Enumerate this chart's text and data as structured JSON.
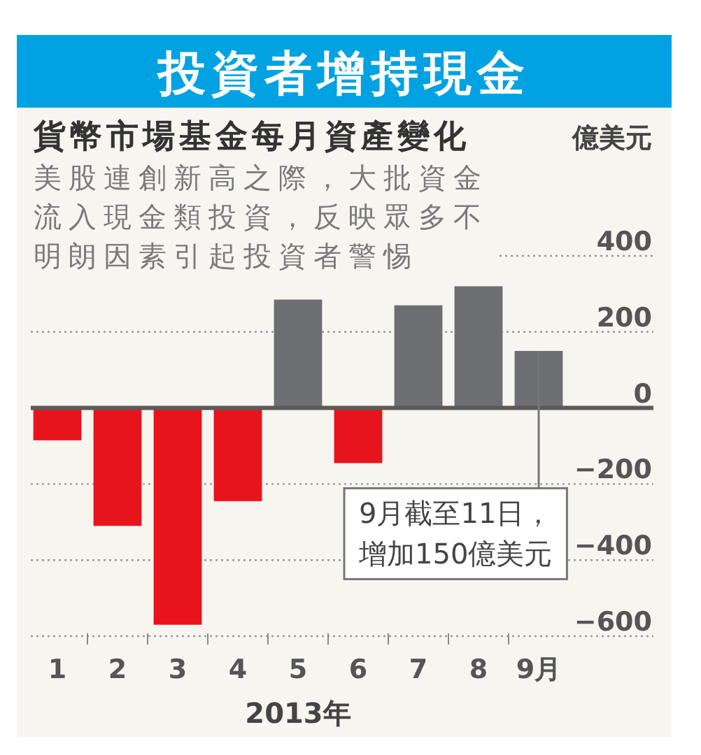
{
  "chart_data": {
    "type": "bar",
    "title": "投資者增持現金",
    "subtitle": "貨幣市場基金每月資產變化",
    "ylabel": "億美元",
    "xlabel": "2013年",
    "categories": [
      "1",
      "2",
      "3",
      "4",
      "5",
      "6",
      "7",
      "8",
      "9月"
    ],
    "values": [
      -85,
      -310,
      -570,
      -245,
      285,
      -145,
      270,
      320,
      150
    ],
    "colors": [
      "#e8141c",
      "#e8141c",
      "#e8141c",
      "#e8141c",
      "#6d6e71",
      "#e8141c",
      "#6d6e71",
      "#6d6e71",
      "#6d6e71"
    ],
    "ylim": [
      -600,
      400
    ],
    "yticks": [
      -600,
      -400,
      -200,
      0,
      200,
      400
    ],
    "grid": "y",
    "annotations": [
      "美股連創新高之際，大批資金流入現金類投資，反映眾多不明朗因素引起投資者警惕",
      {
        "text": "9月截至11日，增加150億美元",
        "x": "9月",
        "y": 150
      }
    ]
  }
}
